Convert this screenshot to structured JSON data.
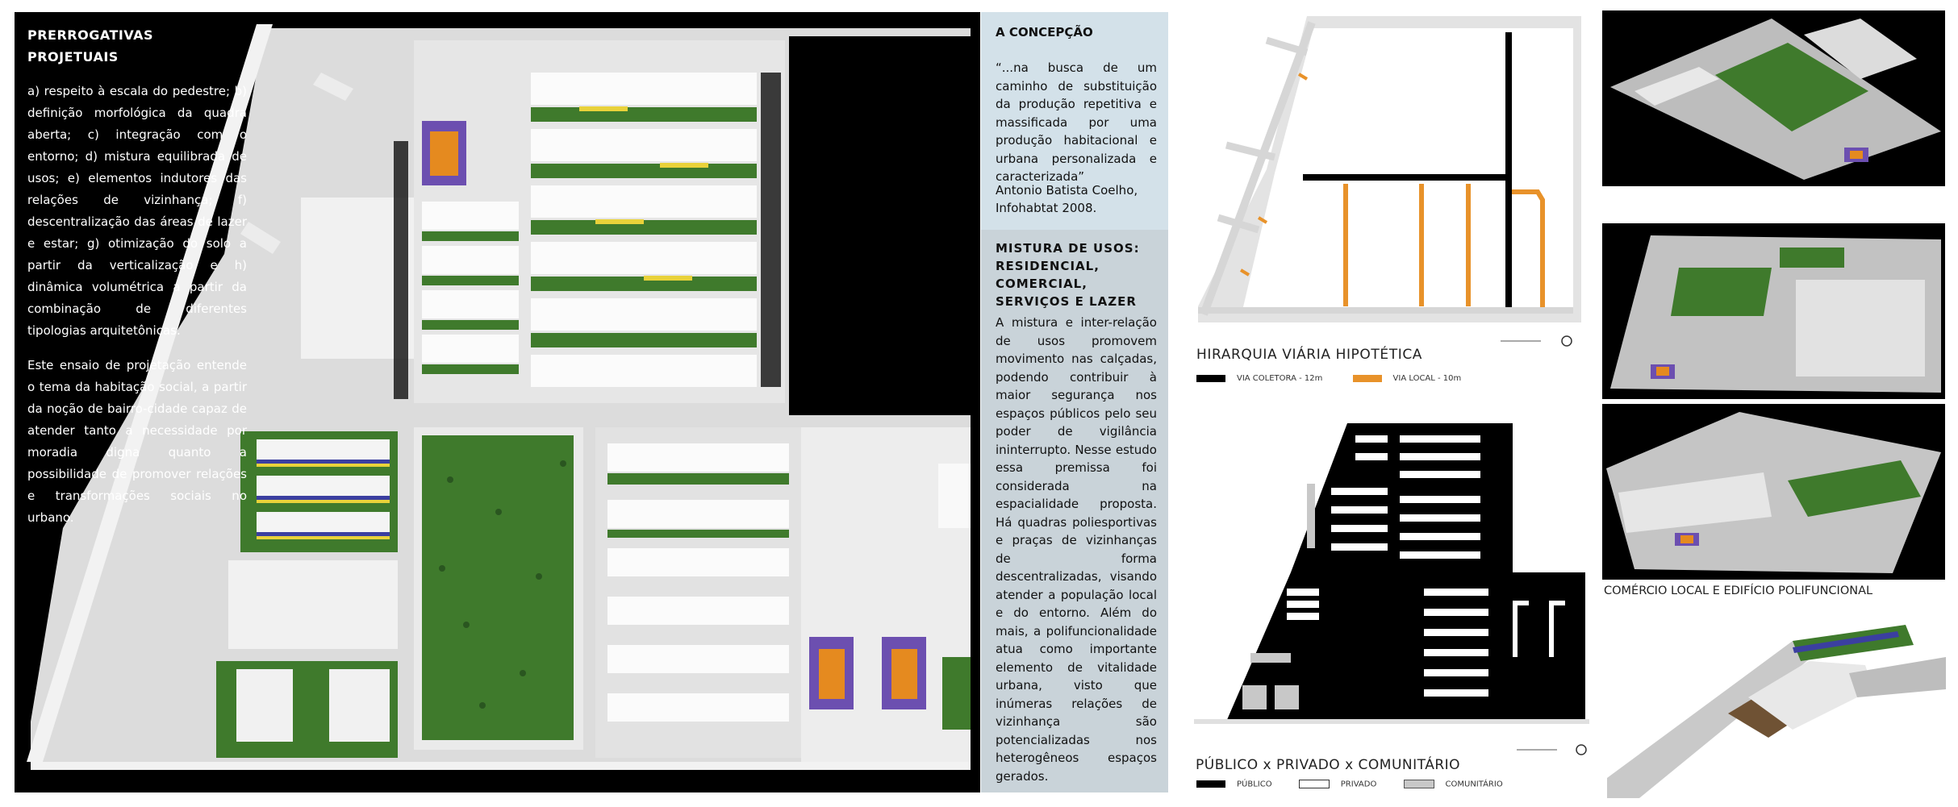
{
  "plan": {
    "title": "PRERROGATIVAS PROJETUAIS",
    "intro": "a) respeito à escala do pedestre; b) definição morfológica da quadra aberta; c) integração com o entorno; d) mistura equilibrada de usos; e) elementos indutores das relações de vizinhança; f) descentralização das áreas de lazer e estar; g) otimização do solo a partir da verticalização e h) dinâmica volumétrica a partir da combinação de diferentes tipologias arquitetônicas.",
    "body": "Este ensaio de projetação entende o tema da habitação social, a partir da noção de bairro-cidade capaz de atender tanto a necessidade por moradia digna quanto a possibilidade de promover relações e transformações sociais no urbano."
  },
  "concepcao": {
    "title": "A CONCEPÇÃO",
    "quote": "“...na busca de um caminho de substituição da produção repetitiva e massificada por uma produção habitacional e urbana personalizada e caracterizada”",
    "author": "Antonio Batista Coelho,",
    "source": "Infohabtat 2008."
  },
  "mistura": {
    "title": "MISTURA DE USOS: RESIDENCIAL, COMERCIAL, SERVIÇOS E LAZER",
    "text": "A mistura e inter-relação de usos promovem movimento nas calçadas, podendo contribuir à maior segurança nos espaços públicos pelo seu poder de vigilância ininterrupto. Nesse estudo essa premissa foi considerada na espacialidade proposta. Há quadras poliesportivas e praças de vizinhanças de forma descentralizadas, visando atender a população local e do entorno. Além do mais, a polifuncionalidade atua como importante elemento de vitalidade urbana, visto que inúmeras relações de vizinhança são potencializadas nos heterogêneos espaços gerados."
  },
  "hierarquia": {
    "title": "HIRARQUIA VIÁRIA HIPOTÉTICA",
    "legend": [
      {
        "label": "VIA COLETORA - 12m",
        "color": "#000000"
      },
      {
        "label": "VIA LOCAL - 10m",
        "color": "#e8922a"
      }
    ]
  },
  "publico": {
    "title": "PÚBLICO x PRIVADO x COMUNITÁRIO",
    "legend": [
      {
        "label": "PÚBLICO",
        "color": "#000000"
      },
      {
        "label": "PRIVADO",
        "color": "#ffffff"
      },
      {
        "label": "COMUNITÁRIO",
        "color": "#c8c8c8"
      }
    ]
  },
  "views": {
    "caption": "COMÉRCIO LOCAL E EDIFÍCIO POLIFUNCIONAL"
  },
  "colors": {
    "green": "#3f7a2c",
    "court_orange": "#e58a1f",
    "court_purple": "#6c4fb0",
    "road_orange": "#e8922a",
    "text_panel_top": "#d3e1e9",
    "text_panel_bottom": "#c9d3d9"
  }
}
